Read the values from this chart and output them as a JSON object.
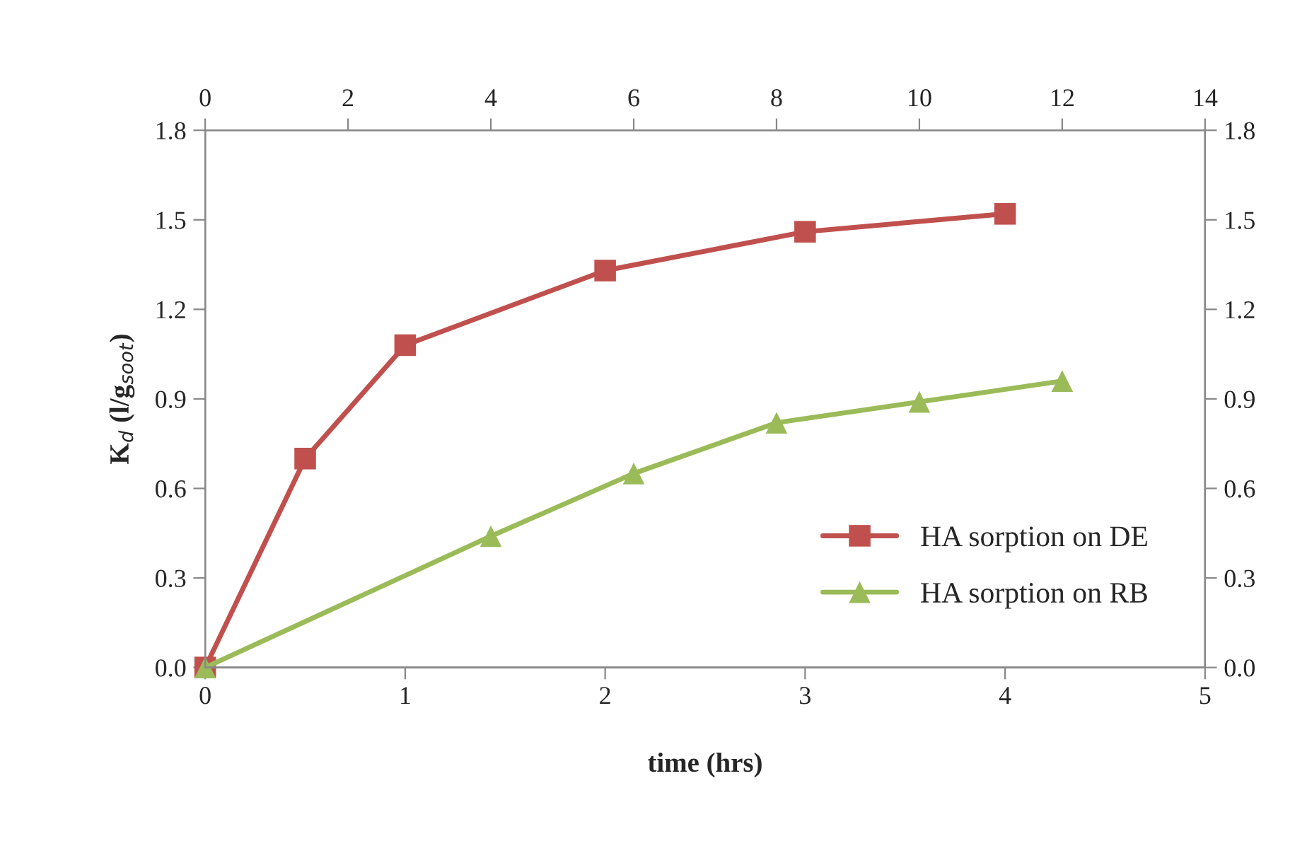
{
  "chart_data": {
    "type": "line",
    "xlabel": "time (hrs)",
    "ylabel": "K$_{d}$ (l/g$_{soot}$)",
    "xlim": [
      0,
      5
    ],
    "xticks": [
      0,
      1,
      2,
      3,
      4,
      5
    ],
    "x2lim": [
      0,
      14
    ],
    "x2ticks": [
      0,
      2,
      4,
      6,
      8,
      10,
      12,
      14
    ],
    "ylim": [
      0,
      1.8
    ],
    "yticks": [
      {
        "value": 0,
        "label": "0.0"
      },
      0.3,
      0.6,
      0.9,
      1.2,
      1.5,
      1.8
    ],
    "y2lim": [
      0,
      1.8
    ],
    "y2ticks": [
      {
        "value": 0,
        "label": "0.0"
      },
      0.3,
      0.6,
      0.9,
      1.2,
      1.5,
      1.8
    ],
    "legend": "bottom right",
    "grid": false,
    "series": [
      {
        "name": "HA sorption on DE",
        "color": "#c0504d",
        "marker": "square",
        "x": [
          0,
          0.5,
          1,
          2,
          3,
          4
        ],
        "values": [
          0,
          0.7,
          1.08,
          1.33,
          1.46,
          1.52
        ]
      },
      {
        "name": "HA sorption on RB",
        "color": "#9bbb59",
        "marker": "triangle",
        "axis": "x2",
        "x": [
          0,
          4,
          6,
          8,
          10,
          12
        ],
        "values": [
          0,
          0.44,
          0.65,
          0.82,
          0.89,
          0.96
        ]
      }
    ]
  }
}
